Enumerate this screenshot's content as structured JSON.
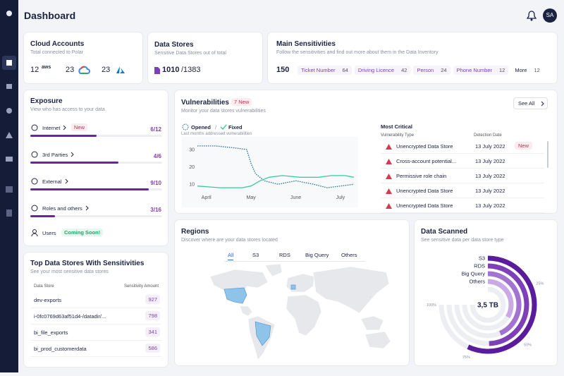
{
  "header": {
    "title": "Dashboard",
    "avatar": "SA"
  },
  "cloud_accounts": {
    "title": "Cloud Accounts",
    "subtitle": "Total connected to Polar",
    "items": [
      {
        "count": 12,
        "logo": "aws"
      },
      {
        "count": 23
      },
      {
        "count": 23
      }
    ]
  },
  "data_stores": {
    "title": "Data Stores",
    "subtitle": "Sensitive Data Stores out of total",
    "value": 1010,
    "total": "/1383"
  },
  "main_sensitivities": {
    "title": "Main Sensitivities",
    "subtitle": "Follow the sensitivities and find out more about them in the Data Inventory",
    "total": 150,
    "tags": [
      {
        "name": "Ticket Number",
        "count": 64
      },
      {
        "name": "Driving Licence",
        "count": 42
      },
      {
        "name": "Person",
        "count": 24
      },
      {
        "name": "Phone Number",
        "count": 12
      }
    ],
    "more": {
      "label": "More",
      "count": 12
    }
  },
  "exposure": {
    "title": "Exposure",
    "subtitle": "View who has access to your data",
    "rows": [
      {
        "label": "Internet",
        "badge": "New",
        "ratio": "6/12"
      },
      {
        "label": "3rd Parties",
        "ratio": "4/6"
      },
      {
        "label": "External",
        "ratio": "9/10"
      },
      {
        "label": "Roles and others",
        "ratio": "3/16"
      }
    ],
    "users": {
      "label": "Users",
      "badge": "Coming Soon!"
    }
  },
  "top_data_stores": {
    "title": "Top Data Stores With Sensitivities",
    "subtitle": "See your most sensitive data stores",
    "columns": [
      "Data Store",
      "Sensitivity Amount"
    ],
    "rows": [
      [
        "dev-exports",
        927
      ],
      [
        "i-0fc0769d63af51d4-/datadir/...",
        798
      ],
      [
        "bi_file_exports",
        341
      ],
      [
        "bi_prod_customerdata",
        586
      ]
    ]
  },
  "vulnerabilities": {
    "title": "Vulnerabilities",
    "badge": "7 New",
    "subtitle": "Monitor your data stores vulnerabilities",
    "see_all": "See All",
    "caption": "Last months addressed vulnerabilities",
    "chart": {
      "type": "line",
      "xlim": [
        -0.2,
        3.3
      ],
      "xticks": [
        {
          "value": 0,
          "label": "April"
        },
        {
          "value": 1,
          "label": "May"
        },
        {
          "value": 2,
          "label": "June"
        },
        {
          "value": 3,
          "label": "July"
        }
      ],
      "ylim": [
        4,
        34
      ],
      "yticks": [
        10,
        20,
        30
      ],
      "series": [
        {
          "name": "Opened",
          "color": "#1f6f8b",
          "style": "dotted",
          "x": [
            -0.2,
            0.2,
            0.6,
            0.9,
            1.0,
            1.1,
            1.3,
            1.6,
            2.0,
            2.4,
            2.7,
            3.0,
            3.3
          ],
          "values": [
            32,
            32,
            31,
            30,
            22,
            16,
            12,
            10,
            12,
            10,
            8,
            9,
            10
          ]
        },
        {
          "name": "Fixed",
          "color": "#3ccaa0",
          "style": "solid",
          "x": [
            -0.2,
            0.3,
            0.8,
            1.0,
            1.2,
            1.4,
            1.7,
            2.1,
            2.5,
            2.8,
            3.1,
            3.3
          ],
          "values": [
            9,
            8,
            8,
            9,
            12,
            14,
            15,
            14,
            14,
            15,
            15,
            14
          ]
        }
      ]
    },
    "most_critical": {
      "title": "Most Critical",
      "columns": [
        "Vulnerability Type",
        "Detection Date"
      ],
      "rows": [
        {
          "type": "Unencrypted Data Store",
          "date": "13 July 2022",
          "badge": "New"
        },
        {
          "type": "Cross-account potential...",
          "date": "13 July 2022"
        },
        {
          "type": "Permissive role chain",
          "date": "13 July 2022"
        },
        {
          "type": "Unencrypted Data Store",
          "date": "13 July 2022"
        },
        {
          "type": "Unencrypted Data Store",
          "date": "13 July 2022"
        }
      ]
    }
  },
  "regions": {
    "title": "Regions",
    "subtitle": "Discover where are your data stores located",
    "tabs": [
      "All",
      "S3",
      "RDS",
      "Big Query",
      "Others"
    ]
  },
  "data_scanned": {
    "title": "Data Scanned",
    "subtitle": "See sensitive data per data store type",
    "center_label": "3,5 TB",
    "chart": {
      "type": "radial_bar",
      "categories": [
        "S3",
        "RDS",
        "Big Query",
        "Others"
      ],
      "values": [
        76,
        66,
        58,
        45
      ],
      "colors": [
        "#5a1c9c",
        "#7d40b9",
        "#a273d1",
        "#c9a9e6"
      ],
      "ticks": [
        {
          "value": 25,
          "label": "25%"
        },
        {
          "value": 50,
          "label": "50%"
        },
        {
          "value": 75,
          "label": "75%"
        },
        {
          "value": 100,
          "label": "100%"
        }
      ]
    }
  }
}
